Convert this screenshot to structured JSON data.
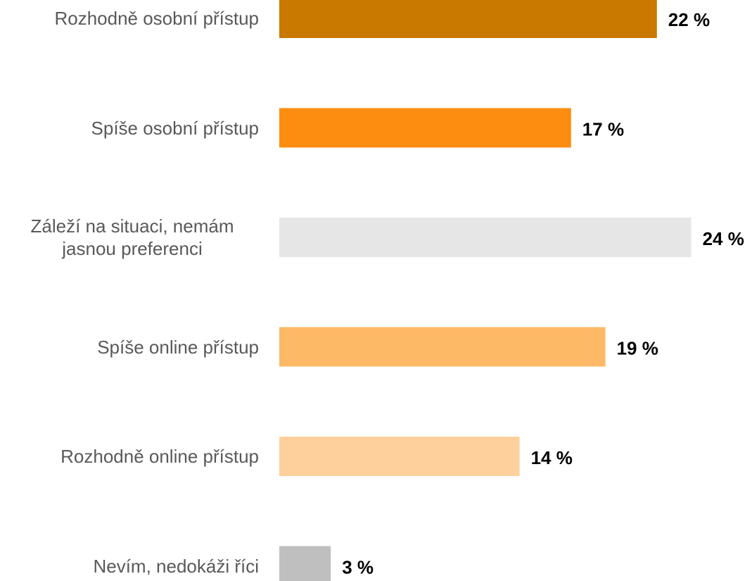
{
  "chart_data": {
    "type": "barh",
    "categories": [
      "Rozhodně osobní přístup",
      "Spíše osobní přístup",
      "Záleží na situaci, nemám jasnou preferenci",
      "Spíše online přístup",
      "Rozhodně online přístup",
      "Nevím, nedokáži říci"
    ],
    "values": [
      22,
      17,
      24,
      19,
      14,
      3
    ],
    "value_labels": [
      "22 %",
      "17 %",
      "24 %",
      "19 %",
      "14 %",
      "3 %"
    ],
    "colors": [
      "#c97800",
      "#fd8d10",
      "#e6e6e6",
      "#fdb966",
      "#fed09b",
      "#bfbfbf"
    ]
  }
}
